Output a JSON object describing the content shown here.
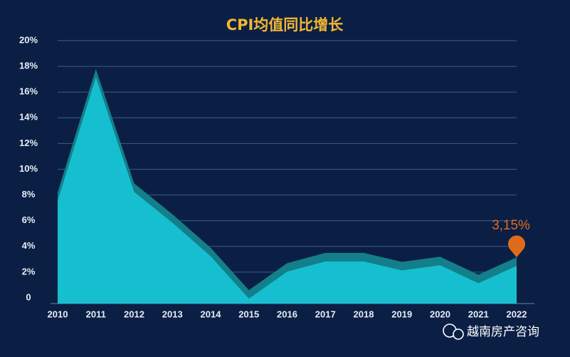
{
  "chart_data": {
    "type": "area",
    "title": "CPI均值同比增长",
    "categories": [
      "2010",
      "2011",
      "2012",
      "2013",
      "2014",
      "2015",
      "2016",
      "2017",
      "2018",
      "2019",
      "2020",
      "2021",
      "2022"
    ],
    "values": [
      8.2,
      17.8,
      8.9,
      6.5,
      3.9,
      0.6,
      2.7,
      3.5,
      3.5,
      2.8,
      3.2,
      1.8,
      3.15
    ],
    "value_labels": [
      null,
      null,
      null,
      null,
      null,
      null,
      null,
      null,
      null,
      null,
      null,
      null,
      "3,15%"
    ],
    "color": "#16bfcf",
    "edge_color": "#137f8a",
    "label_color": "#e06a1c",
    "ylim": [
      0,
      20
    ],
    "yticks": [
      0,
      {
        "value": 2,
        "label": "2%"
      },
      {
        "value": 4,
        "label": "4%"
      },
      {
        "value": 6,
        "label": "6%"
      },
      {
        "value": 8,
        "label": "8%"
      },
      {
        "value": 10,
        "label": "10%"
      },
      {
        "value": 12,
        "label": "12%"
      },
      {
        "value": 14,
        "label": "14%"
      },
      {
        "value": 16,
        "label": "16%"
      },
      {
        "value": 18,
        "label": "18%"
      },
      {
        "value": 20,
        "label": "20%"
      }
    ],
    "grid": true,
    "watermark": "越南房产咨询"
  }
}
